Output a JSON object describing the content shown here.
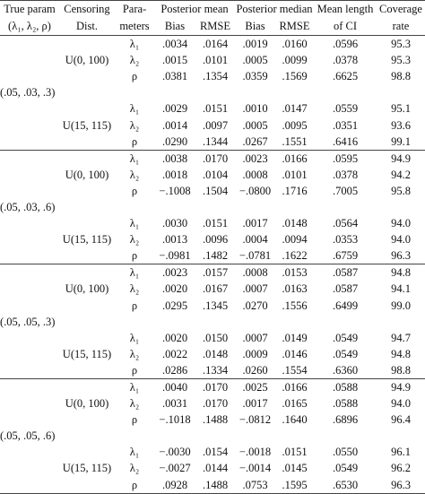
{
  "header": {
    "row1": [
      "True param",
      "Censoring",
      "Para-",
      "Posterior mean",
      "Posterior median",
      "Mean length",
      "Coverage"
    ],
    "row2": [
      "(λ₁, λ₂, ρ)",
      "Dist.",
      "meters",
      "Bias",
      "RMSE",
      "Bias",
      "RMSE",
      "of CI",
      "rate"
    ]
  },
  "groups": [
    {
      "true_param": "(.05, .03, .3)",
      "subgroups": [
        {
          "censoring": "U(0, 100)",
          "rows": [
            [
              "λ₁",
              ".0034",
              ".0164",
              ".0019",
              ".0160",
              ".0596",
              "95.3"
            ],
            [
              "λ₂",
              ".0015",
              ".0101",
              ".0005",
              ".0099",
              ".0378",
              "95.3"
            ],
            [
              "ρ",
              ".0381",
              ".1354",
              ".0359",
              ".1569",
              ".6625",
              "98.8"
            ]
          ]
        },
        {
          "censoring": "U(15, 115)",
          "rows": [
            [
              "λ₁",
              ".0029",
              ".0151",
              ".0010",
              ".0147",
              ".0559",
              "95.1"
            ],
            [
              "λ₂",
              ".0014",
              ".0097",
              ".0005",
              ".0095",
              ".0351",
              "93.6"
            ],
            [
              "ρ",
              ".0290",
              ".1344",
              ".0267",
              ".1551",
              ".6416",
              "99.1"
            ]
          ]
        }
      ]
    },
    {
      "true_param": "(.05, .03, .6)",
      "subgroups": [
        {
          "censoring": "U(0, 100)",
          "rows": [
            [
              "λ₁",
              ".0038",
              ".0170",
              ".0023",
              ".0166",
              ".0595",
              "94.9"
            ],
            [
              "λ₂",
              ".0018",
              ".0104",
              ".0008",
              ".0101",
              ".0378",
              "94.2"
            ],
            [
              "ρ",
              "−.1008",
              ".1504",
              "−.0800",
              ".1716",
              ".7005",
              "95.8"
            ]
          ]
        },
        {
          "censoring": "U(15, 115)",
          "rows": [
            [
              "λ₁",
              ".0030",
              ".0151",
              ".0017",
              ".0148",
              ".0564",
              "94.0"
            ],
            [
              "λ₂",
              ".0013",
              ".0096",
              ".0004",
              ".0094",
              ".0353",
              "94.0"
            ],
            [
              "ρ",
              "−.0981",
              ".1482",
              "−.0781",
              ".1622",
              ".6759",
              "96.3"
            ]
          ]
        }
      ]
    },
    {
      "true_param": "(.05, .05, .3)",
      "subgroups": [
        {
          "censoring": "U(0, 100)",
          "rows": [
            [
              "λ₁",
              ".0023",
              ".0157",
              ".0008",
              ".0153",
              ".0587",
              "94.8"
            ],
            [
              "λ₂",
              ".0020",
              ".0167",
              ".0007",
              ".0163",
              ".0587",
              "94.1"
            ],
            [
              "ρ",
              ".0295",
              ".1345",
              ".0270",
              ".1556",
              ".6499",
              "99.0"
            ]
          ]
        },
        {
          "censoring": "U(15, 115)",
          "rows": [
            [
              "λ₁",
              ".0020",
              ".0150",
              ".0007",
              ".0149",
              ".0549",
              "94.7"
            ],
            [
              "λ₂",
              ".0022",
              ".0148",
              ".0009",
              ".0146",
              ".0549",
              "94.8"
            ],
            [
              "ρ",
              ".0286",
              ".1334",
              ".0260",
              ".1554",
              ".6360",
              "98.8"
            ]
          ]
        }
      ]
    },
    {
      "true_param": "(.05, .05, .6)",
      "subgroups": [
        {
          "censoring": "U(0, 100)",
          "rows": [
            [
              "λ₁",
              ".0040",
              ".0170",
              ".0025",
              ".0166",
              ".0588",
              "94.9"
            ],
            [
              "λ₂",
              ".0031",
              ".0170",
              ".0017",
              ".0165",
              ".0588",
              "94.0"
            ],
            [
              "ρ",
              "−.1018",
              ".1488",
              "−.0812",
              ".1640",
              ".6896",
              "96.4"
            ]
          ]
        },
        {
          "censoring": "U(15, 115)",
          "rows": [
            [
              "λ₁",
              "−.0030",
              ".0154",
              "−.0018",
              ".0151",
              ".0550",
              "96.1"
            ],
            [
              "λ₂",
              "−.0027",
              ".0144",
              "−.0014",
              ".0145",
              ".0549",
              "96.2"
            ],
            [
              "ρ",
              ".0928",
              ".1488",
              ".0753",
              ".1595",
              ".6530",
              "96.3"
            ]
          ]
        }
      ]
    }
  ]
}
